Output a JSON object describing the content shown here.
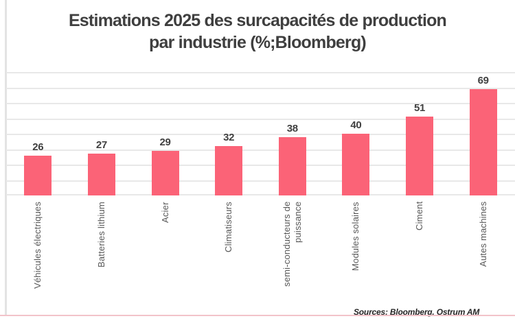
{
  "title": {
    "line1": "Estimations 2025 des surcapacités de production",
    "line2": "par industrie (%;Bloomberg)"
  },
  "source_note": "Sources: Bloomberg, Ostrum AM",
  "colors": {
    "bar": "#FB6377",
    "title_text": "#3F3F3F",
    "value_label": "#404040",
    "category_label": "#595959",
    "gridline": "#E8E8E8",
    "axis_line": "#E3E3E3",
    "bottom_rule": "#F2C3C9"
  },
  "chart_data": {
    "type": "bar",
    "title": "Estimations 2025 des surcapacités de production par industrie (%;Bloomberg)",
    "categories": [
      "Véhicules électriques",
      "Batteries lithium",
      "Acier",
      "Climatiseurs",
      "semi-conducteurs de puissance",
      "Modules solaires",
      "Ciment",
      "Autes machines"
    ],
    "values": [
      26,
      27,
      29,
      32,
      38,
      40,
      51,
      69
    ],
    "xlabel": "",
    "ylabel": "",
    "unit": "%",
    "ylim": [
      0,
      80
    ],
    "gridline_step": 10,
    "grid": true,
    "legend": false,
    "data_labels": true,
    "y_tick_labels_visible": false,
    "source": "Sources: Bloomberg, Ostrum AM"
  }
}
